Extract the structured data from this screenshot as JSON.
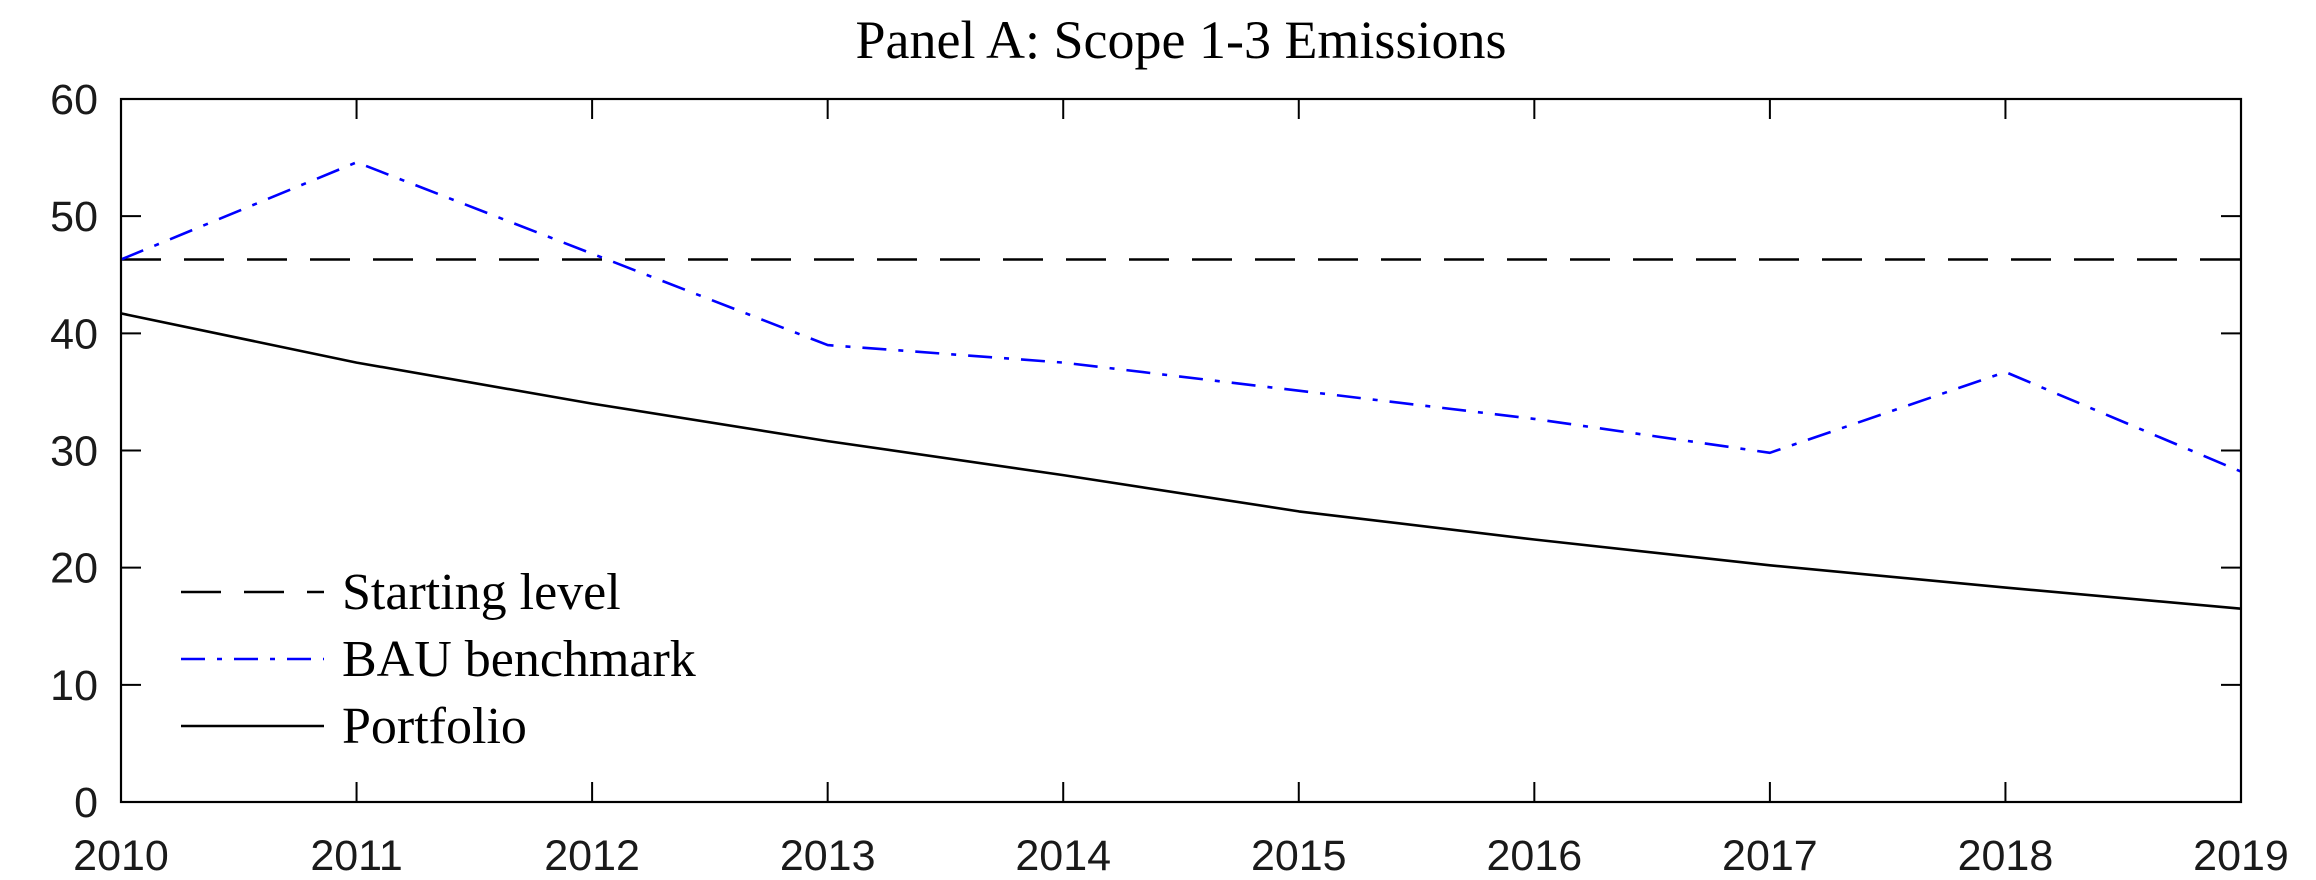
{
  "chart_data": {
    "type": "line",
    "title": "Panel A: Scope 1-3 Emissions",
    "xlabel": "",
    "ylabel": "",
    "x": [
      2010,
      2011,
      2012,
      2013,
      2014,
      2015,
      2016,
      2017,
      2018,
      2019
    ],
    "xlim": [
      2010,
      2019
    ],
    "ylim": [
      0,
      60
    ],
    "yticks": [
      0,
      10,
      20,
      30,
      40,
      50,
      60
    ],
    "grid": false,
    "legend_position": "bottom-left",
    "series": [
      {
        "name": "Starting level",
        "style": "dashed",
        "color": "#000000",
        "values": [
          46.3,
          46.3,
          46.3,
          46.3,
          46.3,
          46.3,
          46.3,
          46.3,
          46.3,
          46.3
        ]
      },
      {
        "name": "BAU benchmark",
        "style": "dash-dot",
        "color": "#0000ff",
        "values": [
          46.3,
          54.6,
          46.8,
          39.0,
          37.5,
          35.1,
          32.7,
          29.8,
          36.7,
          28.2
        ]
      },
      {
        "name": "Portfolio",
        "style": "solid",
        "color": "#000000",
        "values": [
          41.7,
          37.5,
          34.0,
          30.8,
          27.9,
          24.8,
          22.4,
          20.2,
          18.3,
          16.5
        ]
      }
    ]
  }
}
